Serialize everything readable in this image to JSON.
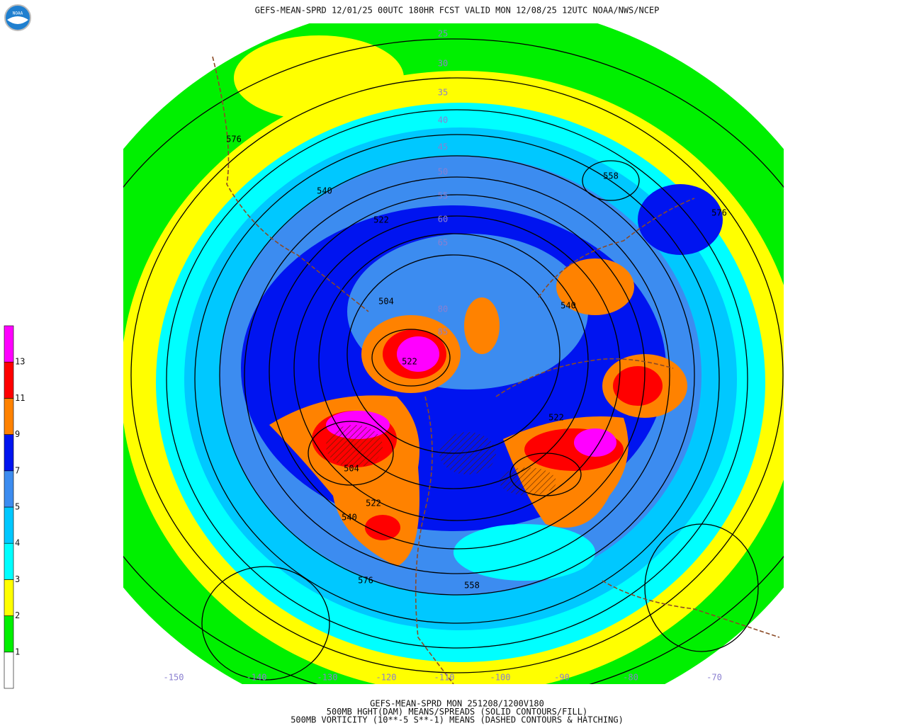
{
  "header": {
    "title": "GEFS-MEAN-SPRD 12/01/25 00UTC 180HR FCST VALID MON 12/08/25 12UTC NOAA/NWS/NCEP"
  },
  "footer": {
    "lines": [
      "GEFS-MEAN-SPRD MON 251208/1200V180",
      "500MB HGHT(DAM) MEANS/SPREADS (SOLID CONTOURS/FILL)",
      "500MB VORTICITY (10**-5 S**-1) MEANS (DASHED CONTOURS & HATCHING)"
    ]
  },
  "legend": {
    "labels": [
      1,
      2,
      3,
      4,
      5,
      7,
      9,
      11,
      13
    ],
    "colors": [
      "#ffffff",
      "#00f000",
      "#ffff00",
      "#00ffff",
      "#00c8ff",
      "#3c8cf0",
      "#0014f0",
      "#ff8200",
      "#ff0000",
      "#ff00ff"
    ]
  },
  "map": {
    "contour_labels": [
      576,
      540,
      522,
      504,
      522,
      558,
      576,
      540,
      522,
      504,
      522,
      540,
      576,
      558
    ],
    "latitude_labels": [
      25,
      30,
      35,
      40,
      45,
      50,
      55,
      60,
      65,
      80,
      85
    ],
    "longitude_labels": [
      -150,
      -140,
      -130,
      -120,
      -110,
      -100,
      -90,
      -80,
      -70
    ]
  }
}
